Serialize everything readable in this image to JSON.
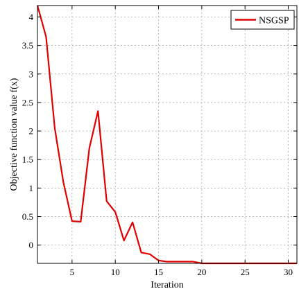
{
  "chart_data": {
    "type": "line",
    "title": "",
    "xlabel": "Iteration",
    "ylabel": "Objective function value f(x)",
    "xlim": [
      1,
      31
    ],
    "ylim": [
      -0.32,
      4.2
    ],
    "xticks": [
      5,
      10,
      15,
      20,
      25,
      30
    ],
    "yticks": [
      0,
      0.5,
      1,
      1.5,
      2,
      2.5,
      3,
      3.5,
      4
    ],
    "xtick_labels": [
      "5",
      "10",
      "15",
      "20",
      "25",
      "30"
    ],
    "ytick_labels": [
      "0",
      "0.5",
      "1",
      "1.5",
      "2",
      "2.5",
      "3",
      "3.5",
      "4"
    ],
    "grid": true,
    "legend_position": "top-right",
    "series": [
      {
        "name": "NSGSP",
        "color": "#e00000",
        "x": [
          1,
          2,
          3,
          4,
          5,
          6,
          7,
          8,
          9,
          10,
          11,
          12,
          13,
          14,
          15,
          16,
          17,
          18,
          19,
          20,
          21,
          22,
          23,
          24,
          25,
          26,
          27,
          28,
          29,
          30,
          31
        ],
        "y": [
          4.2,
          3.65,
          2.05,
          1.1,
          0.42,
          0.41,
          1.7,
          2.35,
          0.77,
          0.58,
          0.08,
          0.4,
          -0.13,
          -0.16,
          -0.27,
          -0.29,
          -0.29,
          -0.29,
          -0.29,
          -0.32,
          -0.32,
          -0.32,
          -0.32,
          -0.32,
          -0.32,
          -0.32,
          -0.32,
          -0.32,
          -0.32,
          -0.32,
          -0.32
        ]
      }
    ]
  }
}
